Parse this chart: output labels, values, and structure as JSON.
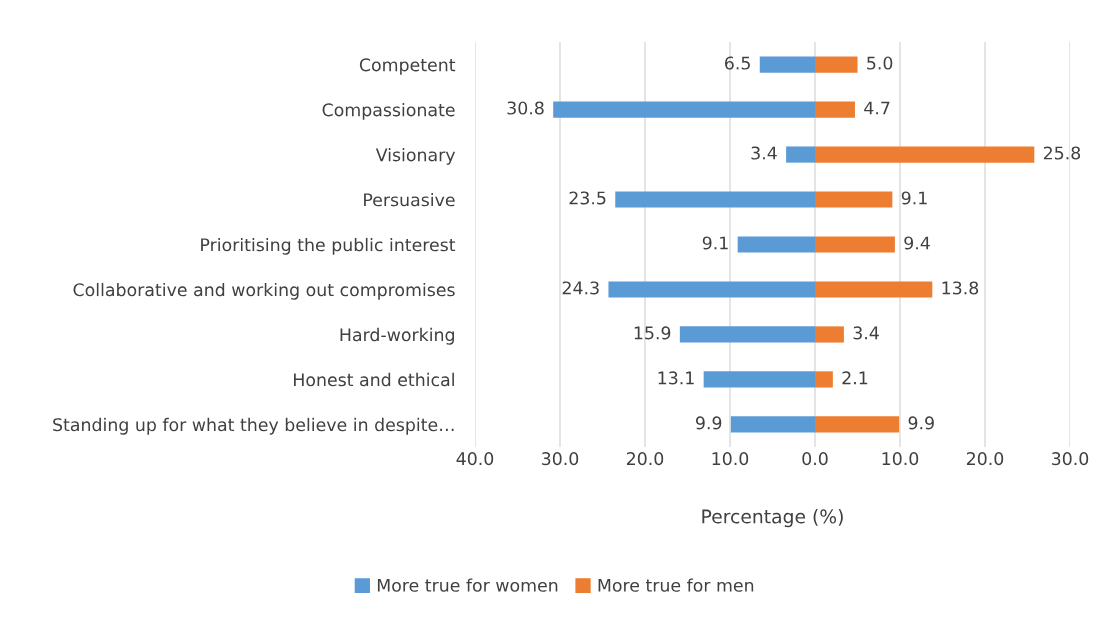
{
  "chart_data": [
    {
      "type": "bar",
      "orientation": "horizontal",
      "categories": [
        "Competent",
        "Compassionate",
        "Visionary",
        "Persuasive",
        "Prioritising the public interest",
        "Collaborative and working out compromises",
        "Hard-working",
        "Honest and ethical",
        "Standing up for what they believe in despite…"
      ],
      "series": [
        {
          "name": "More true for women",
          "color": "#5b9bd5",
          "values": [
            6.5,
            30.8,
            3.4,
            23.5,
            9.1,
            24.3,
            15.9,
            13.1,
            9.9
          ]
        }
      ],
      "data_labels": true,
      "xlabel": "Percentage (%)",
      "xlim": [
        40,
        0
      ],
      "xticks": [
        {
          "value": 40,
          "label": "40.0"
        },
        {
          "value": 30,
          "label": "30.0"
        },
        {
          "value": 20,
          "label": "20.0"
        },
        {
          "value": 10,
          "label": "10.0"
        },
        {
          "value": 0,
          "label": "0.0"
        }
      ],
      "grid": "x"
    },
    {
      "type": "bar",
      "orientation": "horizontal",
      "categories": [
        null,
        null,
        null,
        null,
        null,
        null,
        null,
        null,
        null
      ],
      "series": [
        {
          "name": "More true for men",
          "color": "#ed7d31",
          "values": [
            5.0,
            4.7,
            25.8,
            9.1,
            9.4,
            13.8,
            3.4,
            2.1,
            9.9
          ],
          "value_labels": [
            "5.0",
            "4.7",
            "25.8",
            "9.1",
            "9.4",
            "13.8",
            "3.4",
            "2.1",
            "9.9"
          ]
        }
      ],
      "xlim": [
        0,
        30
      ],
      "xticks": [
        {
          "value": 0,
          "label": null
        },
        {
          "value": 10,
          "label": "10.0"
        },
        {
          "value": 20,
          "label": "20.0"
        },
        {
          "value": 30,
          "label": "30.0"
        }
      ],
      "tick_labels": "x",
      "grid": "x",
      "legend": "bottom"
    }
  ]
}
